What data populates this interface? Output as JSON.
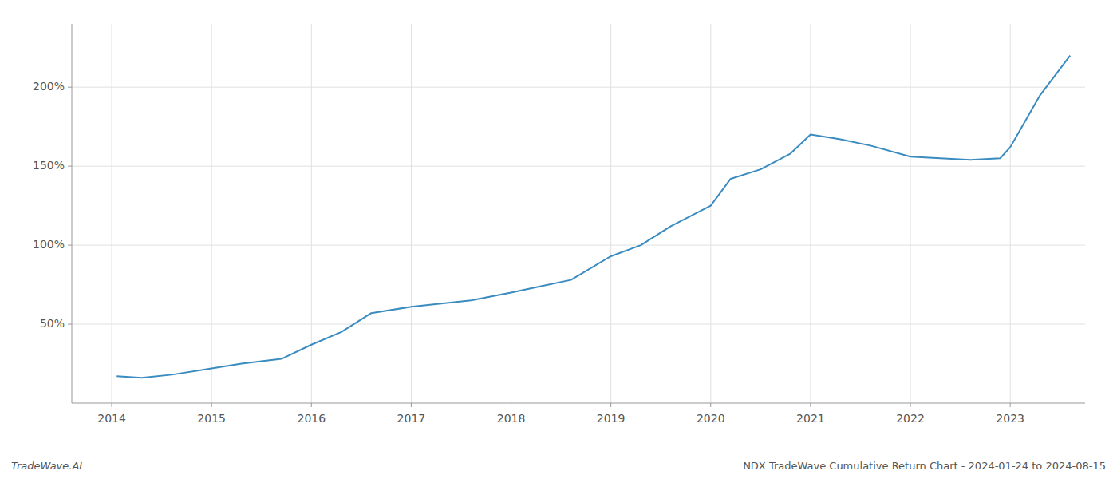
{
  "chart_data": {
    "type": "line",
    "x": [
      2014.05,
      2014.3,
      2014.6,
      2015.0,
      2015.3,
      2015.7,
      2016.0,
      2016.3,
      2016.6,
      2017.0,
      2017.3,
      2017.6,
      2018.0,
      2018.3,
      2018.6,
      2019.0,
      2019.3,
      2019.6,
      2020.0,
      2020.2,
      2020.5,
      2020.8,
      2021.0,
      2021.3,
      2021.6,
      2022.0,
      2022.3,
      2022.6,
      2022.9,
      2023.0,
      2023.3,
      2023.6
    ],
    "values": [
      17,
      16,
      18,
      22,
      25,
      28,
      37,
      45,
      57,
      61,
      63,
      65,
      70,
      74,
      78,
      93,
      100,
      112,
      125,
      142,
      148,
      158,
      170,
      167,
      163,
      156,
      155,
      154,
      155,
      162,
      195,
      220
    ],
    "color": "#3a8bbf",
    "xlim": [
      2013.6,
      2023.75
    ],
    "xticks": [
      2014,
      2015,
      2016,
      2017,
      2018,
      2019,
      2020,
      2021,
      2022,
      2023
    ],
    "ylim": [
      0,
      240
    ],
    "yticks": [
      {
        "value": 50,
        "label": "50%"
      },
      {
        "value": 100,
        "label": "100%"
      },
      {
        "value": 150,
        "label": "150%"
      },
      {
        "value": 200,
        "label": "200%"
      }
    ],
    "grid": true,
    "annotations": [
      "TradeWave.AI",
      "NDX TradeWave Cumulative Return Chart - 2024-01-24 to 2024-08-15"
    ]
  }
}
